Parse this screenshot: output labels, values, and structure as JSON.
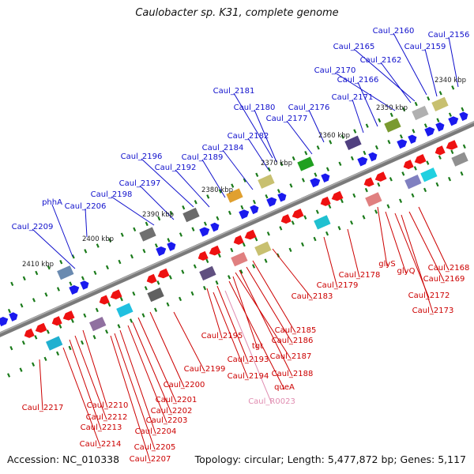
{
  "title": "Caulobacter sp. K31, complete genome",
  "footer": {
    "accession": "Accession: NC_010338",
    "summary": "Topology: circular; Length: 5,477,872 bp; Genes: 5,117"
  },
  "colors": {
    "backbone": "#808080",
    "forward_gene": "#1a1aee",
    "reverse_gene": "#ee1111",
    "forward_label": "#1010cc",
    "reverse_label": "#cc0000",
    "rna_label": "#e08cb0",
    "tick": "#1a7a1a"
  },
  "kbp_ticks": [
    "2340 kbp",
    "2350 kbp",
    "2360 kbp",
    "2370 kbp",
    "2380 kbp",
    "2390 kbp",
    "2400 kbp",
    "2410 kbp"
  ],
  "forward_labels": [
    "Caul_2160",
    "Caul_2156",
    "Caul_2165",
    "Caul_2159",
    "Caul_2162",
    "Caul_2170",
    "Caul_2166",
    "Caul_2181",
    "Caul_2171",
    "Caul_2180",
    "Caul_2176",
    "Caul_2177",
    "Caul_2182",
    "Caul_2184",
    "Caul_2196",
    "Caul_2189",
    "Caul_2192",
    "Caul_2197",
    "Caul_2198",
    "phhA",
    "Caul_2206",
    "Caul_2209"
  ],
  "reverse_labels": [
    "Caul_2168",
    "Caul_2169",
    "glyS",
    "glyQ",
    "Caul_2172",
    "Caul_2173",
    "Caul_2178",
    "Caul_2179",
    "Caul_2183",
    "Caul_2185",
    "Caul_2186",
    "Caul_2195",
    "tgt",
    "Caul_2187",
    "Caul_2193",
    "Caul_2188",
    "Caul_2194",
    "queA",
    "Caul_2199",
    "Caul_2200",
    "Caul_2201",
    "Caul_2202",
    "Caul_2203",
    "Caul_2210",
    "Caul_2212",
    "Caul_2213",
    "Caul_2204",
    "Caul_2205",
    "Caul_2214",
    "Caul_2207",
    "Caul_2217"
  ],
  "rna_labels": [
    "Caul_R0023"
  ]
}
